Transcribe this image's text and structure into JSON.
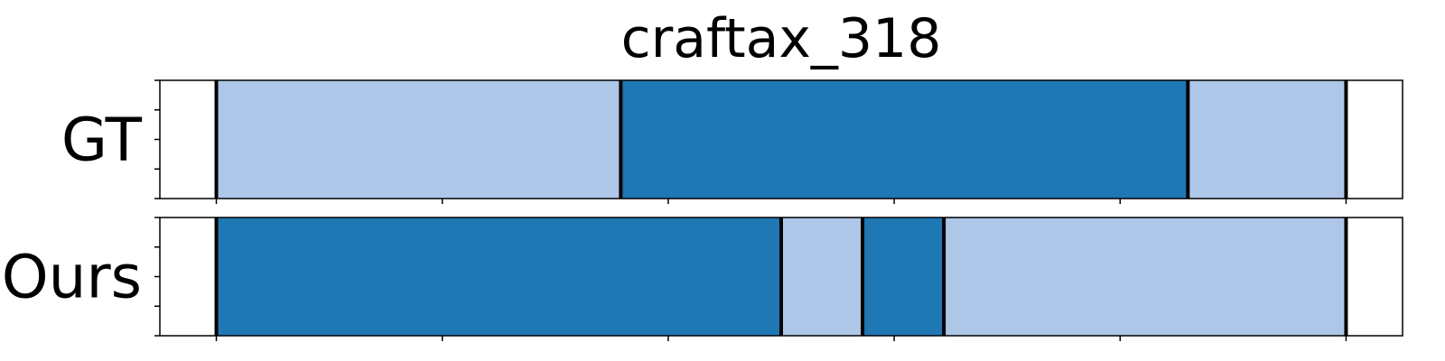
{
  "chart_data": {
    "type": "bar",
    "title": "craftax_318",
    "colors": {
      "light": "#aec7e8",
      "dark": "#1f77b4",
      "boundary": "#000000",
      "frame": "#000000"
    },
    "xlim": [
      0,
      550
    ],
    "ylim": [
      0,
      1
    ],
    "grid": false,
    "rows": [
      {
        "label": "GT",
        "segments": [
          {
            "start": 25,
            "end": 204,
            "color": "light"
          },
          {
            "start": 204,
            "end": 455,
            "color": "dark"
          },
          {
            "start": 455,
            "end": 525,
            "color": "light"
          }
        ],
        "boundaries": [
          25,
          204,
          455,
          525
        ]
      },
      {
        "label": "Ours",
        "segments": [
          {
            "start": 25,
            "end": 275,
            "color": "dark"
          },
          {
            "start": 275,
            "end": 311,
            "color": "light"
          },
          {
            "start": 311,
            "end": 347,
            "color": "dark"
          },
          {
            "start": 347,
            "end": 525,
            "color": "light"
          }
        ],
        "boundaries": [
          25,
          275,
          311,
          347,
          525
        ]
      }
    ],
    "x_ticks": [
      25,
      125,
      225,
      325,
      425,
      525
    ]
  }
}
